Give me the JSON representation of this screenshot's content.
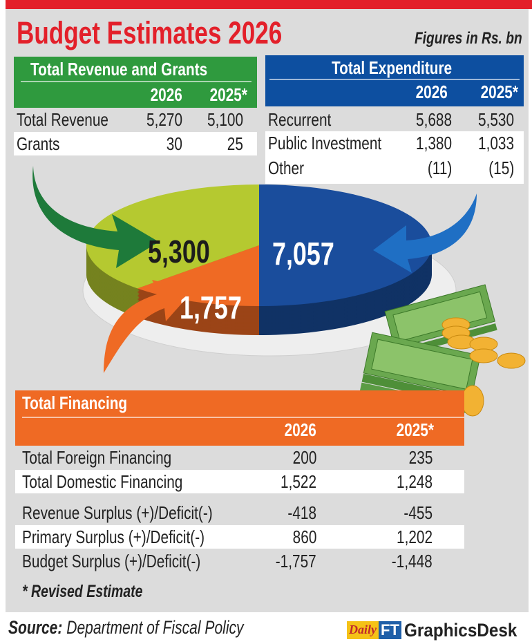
{
  "title": "Budget Estimates 2026",
  "units": "Figures in Rs. bn",
  "revenue_table": {
    "title": "Total Revenue and Grants",
    "years": [
      "2026",
      "2025*"
    ],
    "rows": [
      {
        "label": "Total Revenue",
        "v2026": "5,270",
        "v2025": "5,100"
      },
      {
        "label": "Grants",
        "v2026": "30",
        "v2025": "25"
      }
    ]
  },
  "expenditure_table": {
    "title": "Total Expenditure",
    "years": [
      "2026",
      "2025*"
    ],
    "rows": [
      {
        "label": "Recurrent",
        "v2026": "5,688",
        "v2025": "5,530"
      },
      {
        "label": "Public Investment",
        "v2026": "1,380",
        "v2025": "1,033"
      },
      {
        "label": "Other",
        "v2026": "(11)",
        "v2025": "(15)"
      }
    ]
  },
  "chart_data": {
    "type": "pie",
    "style": "3d",
    "slices": [
      {
        "label": "5,300",
        "value": 5300,
        "color": "#b5c930"
      },
      {
        "label": "1,757",
        "value": 1757,
        "color": "#ef6a24"
      },
      {
        "label": "7,057",
        "value": 7057,
        "color": "#1a4d9c"
      }
    ]
  },
  "financing_table": {
    "title": "Total Financing",
    "years": [
      "2026",
      "2025*"
    ],
    "rows": [
      {
        "label": "Total Foreign Financing",
        "v2026": "200",
        "v2025": "235"
      },
      {
        "label": "Total Domestic Financing",
        "v2026": "1,522",
        "v2025": "1,248"
      },
      {
        "label": "Revenue Surplus (+)/Deficit(-)",
        "v2026": "-418",
        "v2025": "-455"
      },
      {
        "label": "Primary Surplus (+)/Deficit(-)",
        "v2026": "860",
        "v2025": "1,202"
      },
      {
        "label": "Budget Surplus (+)/Deficit(-)",
        "v2026": "-1,757",
        "v2025": "-1,448"
      }
    ]
  },
  "note": "* Revised Estimate",
  "source": {
    "label": "Source:",
    "text": " Department of Fiscal Policy"
  },
  "logo": {
    "daily": "Daily",
    "ft": "FT",
    "graphicsdesk": "GraphicsDesk"
  },
  "colors": {
    "red": "#e3202a",
    "green": "#2f9a3e",
    "blue": "#0d4fa0",
    "orange": "#ef6a24",
    "panel": "#dcdcdc"
  }
}
